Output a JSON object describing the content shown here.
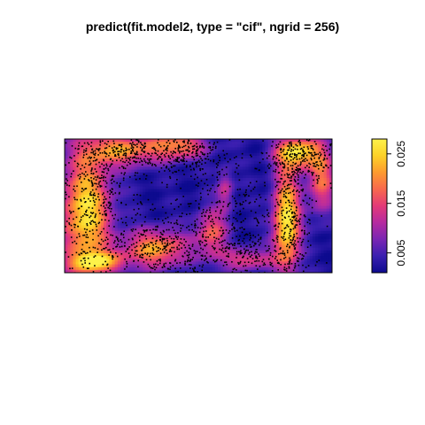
{
  "chart_data": {
    "type": "heatmap",
    "title": "predict(fit.model2, type = \"cif\", ngrid = 256)",
    "colorbar": {
      "ticks": [
        0.005,
        0.015,
        0.025
      ],
      "tick_labels": [
        "0.005",
        "0.015",
        "0.025"
      ],
      "range": [
        0.001,
        0.028
      ],
      "palette": [
        "#0d0a8f",
        "#3a1fb0",
        "#7a26b3",
        "#b52ba0",
        "#e33a78",
        "#f8684d",
        "#fd9a2f",
        "#fdd127",
        "#fdf24a"
      ]
    },
    "grid_cols": 96,
    "grid_rows": 48,
    "field_blobs": [
      {
        "cx": 0.08,
        "cy": 0.55,
        "rx": 0.09,
        "ry": 0.45,
        "amp": 0.95
      },
      {
        "cx": 0.22,
        "cy": 0.08,
        "rx": 0.14,
        "ry": 0.12,
        "amp": 0.7
      },
      {
        "cx": 0.43,
        "cy": 0.05,
        "rx": 0.1,
        "ry": 0.1,
        "amp": 0.65
      },
      {
        "cx": 0.34,
        "cy": 0.82,
        "rx": 0.12,
        "ry": 0.14,
        "amp": 0.75
      },
      {
        "cx": 0.55,
        "cy": 0.7,
        "rx": 0.06,
        "ry": 0.18,
        "amp": 0.55
      },
      {
        "cx": 0.83,
        "cy": 0.62,
        "rx": 0.05,
        "ry": 0.38,
        "amp": 1.0
      },
      {
        "cx": 0.87,
        "cy": 0.1,
        "rx": 0.08,
        "ry": 0.12,
        "amp": 0.9
      },
      {
        "cx": 0.96,
        "cy": 0.3,
        "rx": 0.05,
        "ry": 0.25,
        "amp": 0.6
      },
      {
        "cx": 0.68,
        "cy": 0.9,
        "rx": 0.1,
        "ry": 0.08,
        "amp": 0.5
      },
      {
        "cx": 0.12,
        "cy": 0.92,
        "rx": 0.1,
        "ry": 0.08,
        "amp": 0.7
      },
      {
        "cx": 0.6,
        "cy": 0.38,
        "rx": 0.03,
        "ry": 0.15,
        "amp": 0.4
      }
    ],
    "point_clusters": [
      {
        "cx": 0.1,
        "cy": 0.45,
        "sx": 0.07,
        "sy": 0.35,
        "n": 520
      },
      {
        "cx": 0.25,
        "cy": 0.1,
        "sx": 0.1,
        "sy": 0.08,
        "n": 260
      },
      {
        "cx": 0.47,
        "cy": 0.1,
        "sx": 0.08,
        "sy": 0.09,
        "n": 200
      },
      {
        "cx": 0.36,
        "cy": 0.8,
        "sx": 0.1,
        "sy": 0.12,
        "n": 320
      },
      {
        "cx": 0.6,
        "cy": 0.55,
        "sx": 0.1,
        "sy": 0.25,
        "n": 260
      },
      {
        "cx": 0.84,
        "cy": 0.55,
        "sx": 0.04,
        "sy": 0.35,
        "n": 380
      },
      {
        "cx": 0.9,
        "cy": 0.15,
        "sx": 0.07,
        "sy": 0.1,
        "n": 220
      },
      {
        "cx": 0.7,
        "cy": 0.85,
        "sx": 0.1,
        "sy": 0.08,
        "n": 160
      },
      {
        "cx": 0.5,
        "cy": 0.5,
        "sx": 0.3,
        "sy": 0.4,
        "n": 300
      }
    ]
  }
}
